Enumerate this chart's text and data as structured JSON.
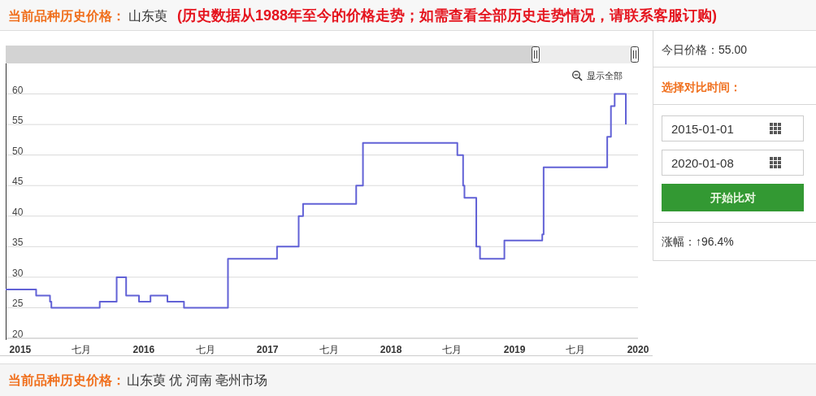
{
  "chart_data": [
    {
      "type": "step",
      "title": "当前品种历史价格：",
      "subtitle": "山东萸",
      "annotations": [
        "(历史数据从1988年至今的价格走势；如需查看全部历史走势情况，请联系客服订购)",
        "显示全部",
        "当前品种历史价格：",
        "山东萸 优 河南 亳州市场"
      ],
      "x": [
        "2014-11-19",
        "2015-02-17",
        "2015-03-30",
        "2015-04-03",
        "2015-08-24",
        "2015-10-13",
        "2015-11-10",
        "2015-12-18",
        "2016-01-21",
        "2016-03-11",
        "2016-04-29",
        "2016-09-06",
        "2017-01-29",
        "2017-04-03",
        "2017-04-16",
        "2017-09-20",
        "2017-10-10",
        "2018-07-16",
        "2018-08-02",
        "2018-08-06",
        "2018-09-10",
        "2018-09-21",
        "2018-12-02",
        "2019-03-24",
        "2019-03-28",
        "2019-10-02",
        "2019-10-13",
        "2019-10-24",
        "2019-11-26"
      ],
      "values": [
        28,
        27,
        26,
        25,
        26,
        30,
        27,
        26,
        27,
        26,
        25,
        33,
        35,
        40,
        42,
        45,
        52,
        50,
        45,
        43,
        35,
        33,
        36,
        37,
        48,
        53,
        58,
        60,
        55
      ],
      "color": "#6262d6",
      "xlim": [
        "2014-11-19",
        "2020-01-01"
      ],
      "ylim": [
        20,
        65
      ],
      "xticks": [
        {
          "value": "2015-01-01",
          "label": "2015"
        },
        {
          "value": "2015-07-01",
          "label": "七月"
        },
        {
          "value": "2016-01-01",
          "label": "2016"
        },
        {
          "value": "2016-07-01",
          "label": "七月"
        },
        {
          "value": "2017-01-01",
          "label": "2017"
        },
        {
          "value": "2017-07-01",
          "label": "七月"
        },
        {
          "value": "2018-01-01",
          "label": "2018"
        },
        {
          "value": "2018-07-01",
          "label": "七月"
        },
        {
          "value": "2019-01-01",
          "label": "2019"
        },
        {
          "value": "2019-07-01",
          "label": "七月"
        },
        {
          "value": "2020-01-01",
          "label": "2020"
        }
      ],
      "yticks": [
        20,
        25,
        30,
        35,
        40,
        45,
        50,
        55,
        60
      ],
      "grid": "y"
    },
    {
      "type": "other",
      "annotations": [
        "今日价格：55.00",
        "选择对比时间：",
        "2015-01-01",
        "2020-01-08",
        "开始比对",
        "涨幅：↑96.4%"
      ]
    }
  ]
}
